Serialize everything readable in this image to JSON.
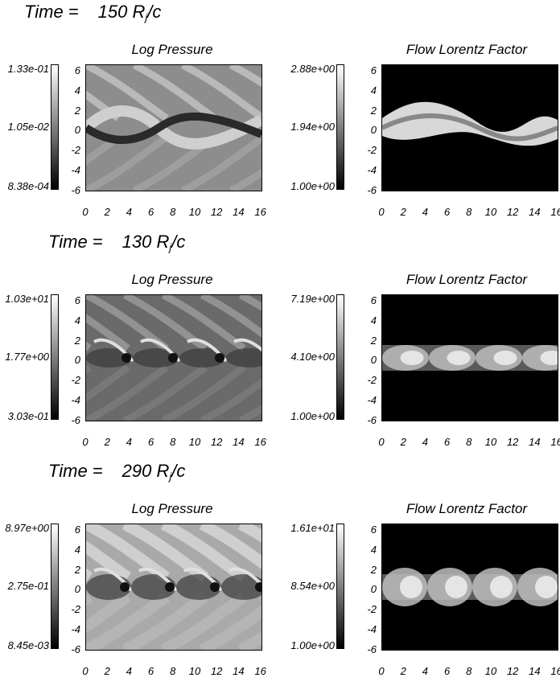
{
  "rows": [
    {
      "time": {
        "prefix": "Time =",
        "value": "150",
        "unit_main": "R",
        "unit_sub": "j",
        "unit_tail": "/c"
      },
      "panels": [
        {
          "title": "Log Pressure",
          "cbar": {
            "max": "1.33e-01",
            "mid": "1.05e-02",
            "min": "8.38e-04"
          }
        },
        {
          "title": "Flow Lorentz Factor",
          "cbar": {
            "max": "2.88e+00",
            "mid": "1.94e+00",
            "min": "1.00e+00"
          }
        }
      ]
    },
    {
      "time": {
        "prefix": "Time =",
        "value": "130",
        "unit_main": "R",
        "unit_sub": "j",
        "unit_tail": "/c"
      },
      "panels": [
        {
          "title": "Log Pressure",
          "cbar": {
            "max": "1.03e+01",
            "mid": "1.77e+00",
            "min": "3.03e-01"
          }
        },
        {
          "title": "Flow Lorentz Factor",
          "cbar": {
            "max": "7.19e+00",
            "mid": "4.10e+00",
            "min": "1.00e+00"
          }
        }
      ]
    },
    {
      "time": {
        "prefix": "Time =",
        "value": "290",
        "unit_main": "R",
        "unit_sub": "j",
        "unit_tail": "/c"
      },
      "panels": [
        {
          "title": "Log Pressure",
          "cbar": {
            "max": "8.97e+00",
            "mid": "2.75e-01",
            "min": "8.45e-03"
          }
        },
        {
          "title": "Flow Lorentz Factor",
          "cbar": {
            "max": "1.61e+01",
            "mid": "8.54e+00",
            "min": "1.00e+00"
          }
        }
      ]
    }
  ],
  "axes": {
    "yticks": [
      "6",
      "4",
      "2",
      "0",
      "-2",
      "-4",
      "-6"
    ],
    "xticks": [
      "0",
      "2",
      "4",
      "6",
      "8",
      "10",
      "12",
      "14",
      "16"
    ]
  }
}
